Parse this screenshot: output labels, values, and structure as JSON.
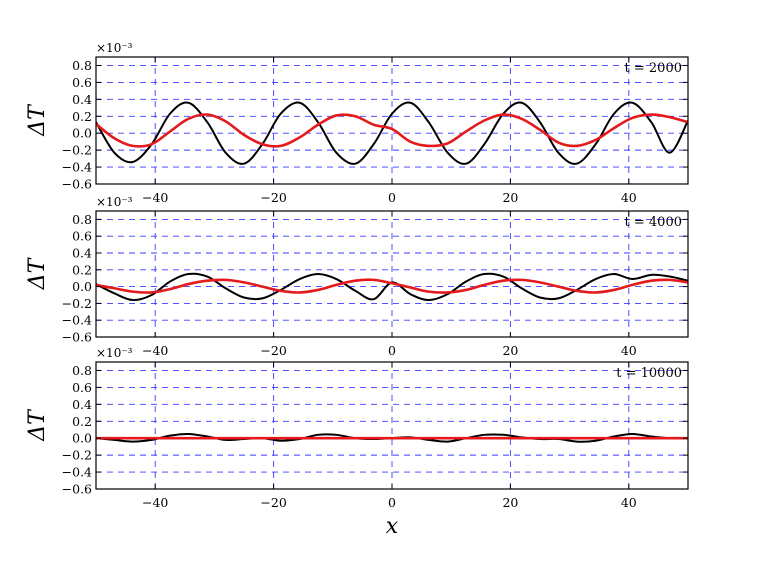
{
  "chart_data": [
    {
      "type": "line",
      "annotation": "t = 2000",
      "ylabel": "ΔT",
      "xlabel": "",
      "scale_label": "×10⁻³",
      "xlim": [
        -50,
        50
      ],
      "ylim": [
        -0.6,
        0.9
      ],
      "xticks": [
        -40,
        -20,
        0,
        20,
        40
      ],
      "yticks": [
        -0.6,
        -0.4,
        -0.2,
        0.0,
        0.2,
        0.4,
        0.6,
        0.8
      ],
      "ytick_labels": [
        "−0.6",
        "−0.4",
        "−0.2",
        "0.0",
        "0.2",
        "0.4",
        "0.6",
        "0.8"
      ],
      "xtick_labels": [
        "−40",
        "−20",
        "0",
        "20",
        "40"
      ],
      "grid": true,
      "series": [
        {
          "color": "#000000",
          "x": [
            -50,
            -46.9,
            -43.8,
            -40.6,
            -37.5,
            -34.4,
            -31.2,
            -28.1,
            -25,
            -21.9,
            -18.8,
            -15.6,
            -12.5,
            -9.4,
            -6.2,
            -3.1,
            0,
            3.1,
            6.2,
            9.4,
            12.5,
            15.6,
            18.8,
            21.9,
            25,
            28.1,
            31.2,
            34.4,
            37.5,
            40.6,
            43.8,
            46.9,
            50
          ],
          "y": [
            0.13,
            -0.23,
            -0.34,
            -0.13,
            0.23,
            0.36,
            0.13,
            -0.23,
            -0.36,
            -0.13,
            0.23,
            0.36,
            0.13,
            -0.23,
            -0.36,
            -0.13,
            0.23,
            0.36,
            0.13,
            -0.23,
            -0.36,
            -0.13,
            0.23,
            0.36,
            0.13,
            -0.23,
            -0.36,
            -0.13,
            0.23,
            0.36,
            0.13,
            -0.23,
            0.15
          ]
        },
        {
          "color": "#e41a1c",
          "x": [
            -50,
            -46.9,
            -43.8,
            -40.6,
            -37.5,
            -34.4,
            -31.2,
            -28.1,
            -25,
            -21.9,
            -18.8,
            -15.6,
            -12.5,
            -9.4,
            -6.2,
            -3.1,
            0,
            3.1,
            6.2,
            9.4,
            12.5,
            15.6,
            18.8,
            21.9,
            25,
            28.1,
            31.2,
            34.4,
            37.5,
            40.6,
            43.8,
            46.9,
            50
          ],
          "y": [
            0.11,
            -0.06,
            -0.15,
            -0.13,
            0.02,
            0.17,
            0.22,
            0.14,
            -0.02,
            -0.13,
            -0.15,
            -0.05,
            0.1,
            0.21,
            0.2,
            0.1,
            0.05,
            -0.1,
            -0.15,
            -0.12,
            0.02,
            0.15,
            0.22,
            0.17,
            0.04,
            -0.11,
            -0.15,
            -0.08,
            0.06,
            0.18,
            0.22,
            0.19,
            0.13
          ]
        }
      ]
    },
    {
      "type": "line",
      "annotation": "t = 4000",
      "ylabel": "ΔT",
      "xlabel": "",
      "scale_label": "×10⁻³",
      "xlim": [
        -50,
        50
      ],
      "ylim": [
        -0.6,
        0.9
      ],
      "xticks": [
        -40,
        -20,
        0,
        20,
        40
      ],
      "yticks": [
        -0.6,
        -0.4,
        -0.2,
        0.0,
        0.2,
        0.4,
        0.6,
        0.8
      ],
      "ytick_labels": [
        "−0.6",
        "−0.4",
        "−0.2",
        "0.0",
        "0.2",
        "0.4",
        "0.6",
        "0.8"
      ],
      "xtick_labels": [
        "−40",
        "−20",
        "0",
        "20",
        "40"
      ],
      "grid": true,
      "series": [
        {
          "color": "#000000",
          "x": [
            -50,
            -46.9,
            -43.8,
            -40.6,
            -37.5,
            -34.4,
            -31.2,
            -28.1,
            -25,
            -21.9,
            -18.8,
            -15.6,
            -12.5,
            -9.4,
            -6.2,
            -3.1,
            0,
            3.1,
            6.2,
            9.4,
            12.5,
            15.6,
            18.8,
            21.9,
            25,
            28.1,
            31.2,
            34.4,
            37.5,
            40.6,
            43.8,
            46.9,
            50
          ],
          "y": [
            0.03,
            -0.08,
            -0.16,
            -0.1,
            0.06,
            0.15,
            0.12,
            -0.02,
            -0.13,
            -0.14,
            -0.04,
            0.09,
            0.15,
            0.09,
            -0.05,
            -0.15,
            0.05,
            -0.09,
            -0.16,
            -0.09,
            0.06,
            0.15,
            0.12,
            -0.02,
            -0.13,
            -0.14,
            -0.04,
            0.09,
            0.15,
            0.09,
            0.14,
            0.12,
            0.07
          ]
        },
        {
          "color": "#e41a1c",
          "x": [
            -50,
            -46.9,
            -43.8,
            -40.6,
            -37.5,
            -34.4,
            -31.2,
            -28.1,
            -25,
            -21.9,
            -18.8,
            -15.6,
            -12.5,
            -9.4,
            -6.2,
            -3.1,
            0,
            3.1,
            6.2,
            9.4,
            12.5,
            15.6,
            18.8,
            21.9,
            25,
            28.1,
            31.2,
            34.4,
            37.5,
            40.6,
            43.8,
            46.9,
            50
          ],
          "y": [
            0.02,
            -0.02,
            -0.06,
            -0.07,
            -0.03,
            0.03,
            0.07,
            0.08,
            0.05,
            0.0,
            -0.05,
            -0.07,
            -0.04,
            0.02,
            0.07,
            0.08,
            0.04,
            -0.01,
            -0.06,
            -0.07,
            -0.04,
            0.02,
            0.07,
            0.08,
            0.05,
            0.0,
            -0.05,
            -0.07,
            -0.04,
            0.02,
            0.07,
            0.08,
            0.05
          ]
        }
      ]
    },
    {
      "type": "line",
      "annotation": "t = 10000",
      "ylabel": "ΔT",
      "xlabel": "x",
      "scale_label": "×10⁻³",
      "xlim": [
        -50,
        50
      ],
      "ylim": [
        -0.6,
        0.9
      ],
      "xticks": [
        -40,
        -20,
        0,
        20,
        40
      ],
      "yticks": [
        -0.6,
        -0.4,
        -0.2,
        0.0,
        0.2,
        0.4,
        0.6,
        0.8
      ],
      "ytick_labels": [
        "−0.6",
        "−0.4",
        "−0.2",
        "0.0",
        "0.2",
        "0.4",
        "0.6",
        "0.8"
      ],
      "xtick_labels": [
        "−40",
        "−20",
        "0",
        "20",
        "40"
      ],
      "grid": true,
      "series": [
        {
          "color": "#000000",
          "x": [
            -50,
            -46.9,
            -43.8,
            -40.6,
            -37.5,
            -34.4,
            -31.2,
            -28.1,
            -25,
            -21.9,
            -18.8,
            -15.6,
            -12.5,
            -9.4,
            -6.2,
            -3.1,
            0,
            3.1,
            6.2,
            9.4,
            12.5,
            15.6,
            18.8,
            21.9,
            25,
            28.1,
            31.2,
            34.4,
            37.5,
            40.6,
            43.8,
            46.9,
            50
          ],
          "y": [
            0.0,
            -0.02,
            -0.04,
            -0.02,
            0.03,
            0.05,
            0.02,
            -0.02,
            -0.01,
            0.0,
            -0.03,
            -0.01,
            0.04,
            0.04,
            0.0,
            -0.01,
            0.0,
            0.01,
            -0.02,
            -0.04,
            0.0,
            0.04,
            0.04,
            0.01,
            -0.01,
            -0.01,
            -0.04,
            -0.03,
            0.02,
            0.05,
            0.02,
            0.0,
            0.0
          ]
        },
        {
          "color": "#e41a1c",
          "x": [
            -50,
            -37.5,
            -25,
            -12.5,
            0,
            12.5,
            25,
            37.5,
            50
          ],
          "y": [
            0.0,
            0.0,
            0.0,
            0.0,
            0.0,
            0.0,
            0.0,
            0.0,
            0.0
          ]
        }
      ]
    }
  ]
}
